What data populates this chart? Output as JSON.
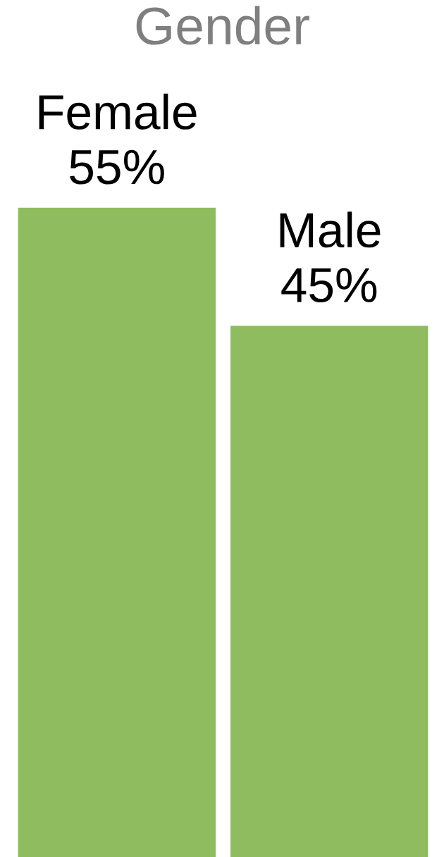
{
  "chart_data": {
    "type": "bar",
    "title": "Gender",
    "categories": [
      "Female",
      "Male"
    ],
    "values": [
      55,
      45
    ],
    "value_labels": [
      "55%",
      "45%"
    ],
    "colors": [
      "#8fbc5e",
      "#8fbc5e"
    ]
  }
}
